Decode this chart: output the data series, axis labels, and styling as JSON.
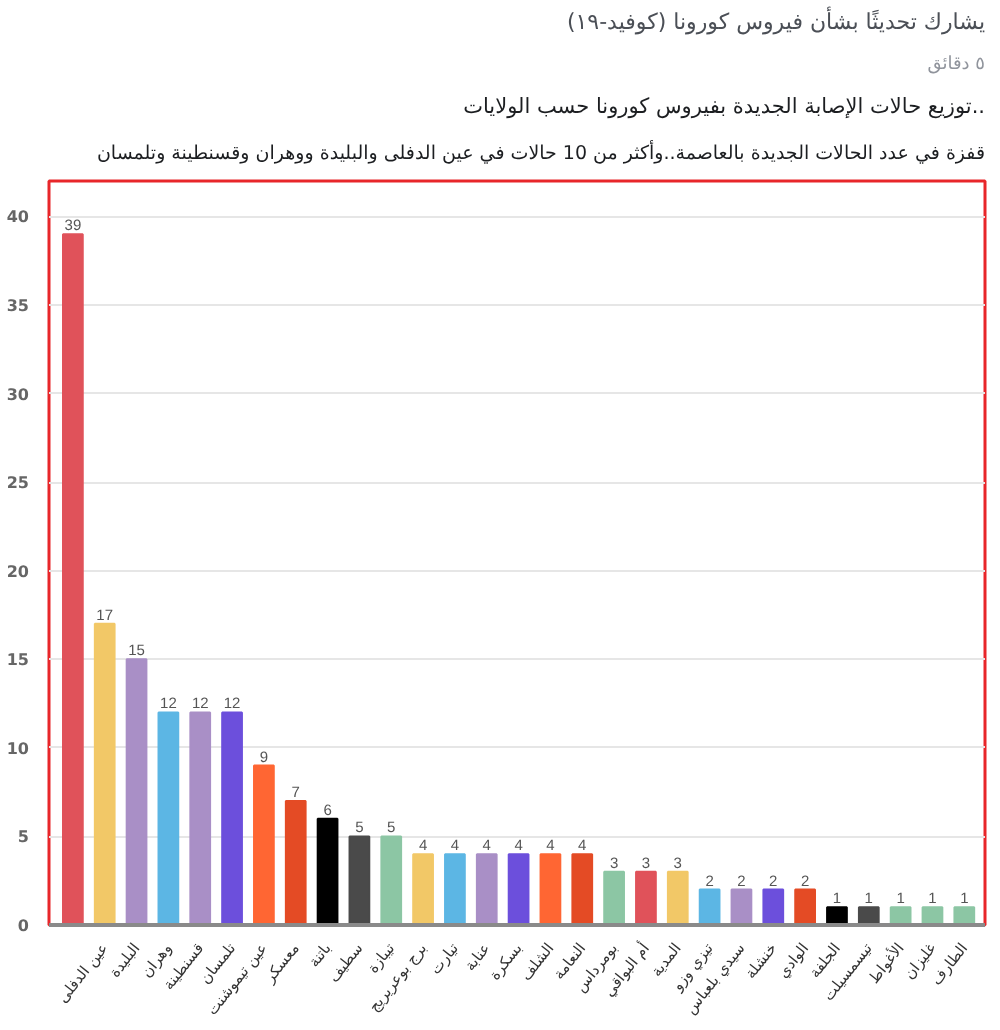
{
  "chart_data": {
    "type": "bar",
    "title": "توزيع حالات الإصابة الجديدة بفيروس كورونا حسب الولايات..",
    "subtitle": "قفزة في عدد الحالات الجديدة بالعاصمة..وأكثر من 10 حالات في عين الدفلى والبليدة ووهران وقسنطينة وتلمسان",
    "annotations": [
      "يشارك تحديثًا بشأن فيروس كورونا (كوفيد-١٩)",
      "٥ دقائق"
    ],
    "categories": [
      null,
      "عين الدفلى",
      "البليدة",
      "وهران",
      "قسنطينة",
      "تلمسان",
      "عين تيموشنت",
      "معسكر",
      "باتنة",
      "سطيف",
      "تيبازة",
      "برج بوعريريج",
      "تيارت",
      "عنابة",
      "بسكرة",
      "الشلف",
      "النعامة",
      "بومرداس",
      "أم البواقي",
      "المدية",
      "تيزي وزو",
      "سيدي بلعباس",
      "خنشلة",
      "الوادي",
      "الجلفة",
      "تيسمسيلت",
      "الأغواط",
      "غليزان",
      "الطارف"
    ],
    "values": [
      39,
      17,
      15,
      12,
      12,
      12,
      9,
      7,
      6,
      5,
      5,
      4,
      4,
      4,
      4,
      4,
      4,
      3,
      3,
      3,
      2,
      2,
      2,
      2,
      1,
      1,
      1,
      1,
      1
    ],
    "colors": [
      "#e0525a",
      "#f2c867",
      "#a98fc6",
      "#5cb6e4",
      "#a98fc6",
      "#6c4fdc",
      "#ff6633",
      "#e44b25",
      "#000000",
      "#4a4a4a",
      "#8cc6a4",
      "#f2c867",
      "#5cb6e4",
      "#a98fc6",
      "#6c4fdc",
      "#ff6633",
      "#e44b25",
      "#8cc6a4",
      "#e0525a",
      "#f2c867",
      "#5cb6e4",
      "#a98fc6",
      "#6c4fdc",
      "#e44b25",
      "#000000",
      "#4a4a4a",
      "#8cc6a4",
      "#8cc6a4",
      "#8cc6a4"
    ],
    "ylim": [
      0,
      42
    ],
    "yticks": [
      0,
      5,
      10,
      15,
      20,
      25,
      30,
      35,
      40
    ],
    "grid": "y",
    "data_labels": true
  }
}
